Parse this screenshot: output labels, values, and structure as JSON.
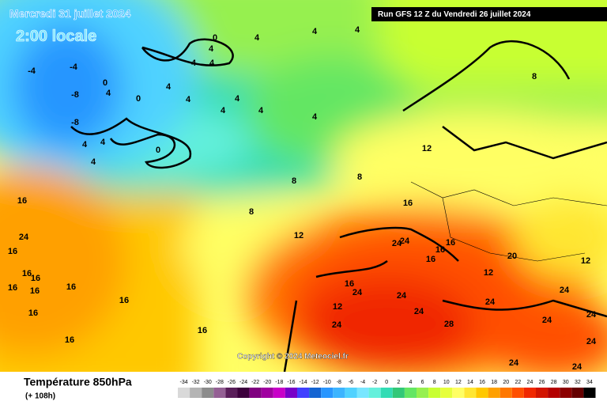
{
  "map": {
    "title": "Mercredi 31 juillet 2024",
    "subtitle": "2:00 locale",
    "run": "Run GFS 12 Z du Vendredi 26 juillet 2024",
    "copyright": "Copyright © 2024 Meteociel.fr",
    "variable": "Température 850hPa",
    "lead": "(+ 108h)",
    "contour_labels": [
      0,
      4,
      4,
      4,
      4,
      4,
      4,
      -4,
      -4,
      0,
      4,
      -8,
      -8,
      4,
      0,
      4,
      4,
      4,
      4,
      4,
      4,
      4,
      0,
      4,
      8,
      8,
      8,
      12,
      12,
      8,
      16,
      16,
      16,
      16,
      16,
      16,
      16,
      16,
      16,
      16,
      16,
      16,
      16,
      24,
      24,
      16,
      16,
      20,
      12,
      12,
      16,
      24,
      24,
      12,
      24,
      24,
      24,
      24,
      28,
      24,
      24,
      24,
      24,
      24,
      24
    ]
  },
  "color_scale": {
    "values": [
      -34,
      -32,
      -30,
      -28,
      -26,
      -24,
      -22,
      -20,
      -18,
      -16,
      -14,
      -12,
      -10,
      -8,
      -6,
      -4,
      -2,
      0,
      2,
      4,
      6,
      8,
      10,
      12,
      14,
      16,
      18,
      20,
      22,
      24,
      26,
      28,
      30,
      32,
      34
    ],
    "colors": [
      "#d9d9d9",
      "#b4b4b4",
      "#8c8c8c",
      "#946094",
      "#5a1e5a",
      "#3c003c",
      "#800080",
      "#a000a0",
      "#c800c8",
      "#7800c8",
      "#4040ff",
      "#1464d2",
      "#2896ff",
      "#3cb4ff",
      "#50d2ff",
      "#78e6ff",
      "#64f0dc",
      "#32dcb4",
      "#32c878",
      "#64e664",
      "#96f050",
      "#c8ff32",
      "#e6ff3c",
      "#ffff64",
      "#ffe632",
      "#ffc800",
      "#ffa000",
      "#ff7800",
      "#ff5000",
      "#f02800",
      "#d21400",
      "#b40000",
      "#8c0000",
      "#640000",
      "#000000"
    ]
  }
}
